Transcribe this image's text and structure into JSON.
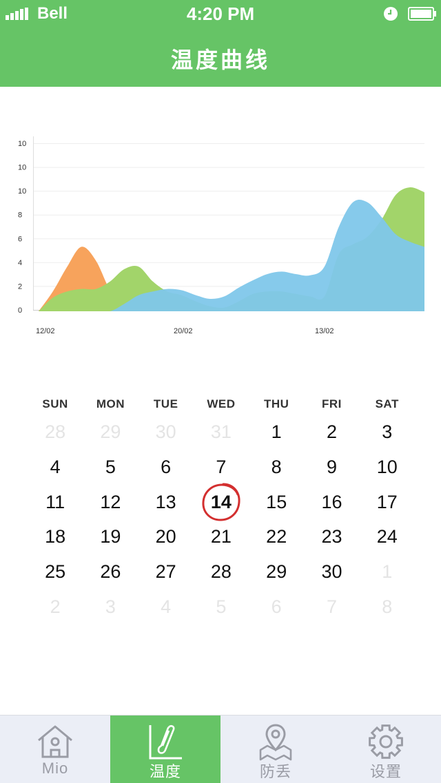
{
  "status_bar": {
    "carrier": "Bell",
    "time": "4:20 PM"
  },
  "header": {
    "title": "温度曲线"
  },
  "chart_data": {
    "type": "area",
    "y_ticks": [
      "0",
      "2",
      "4",
      "6",
      "8",
      "10",
      "10",
      "10"
    ],
    "x_ticks": [
      "12/02",
      "20/02",
      "13/02"
    ],
    "ylim": [
      0,
      14
    ],
    "grid": true,
    "x": [
      0,
      1,
      2,
      3,
      4,
      5,
      6,
      7,
      8,
      9,
      10,
      11,
      12,
      13,
      14,
      15,
      16,
      17,
      18,
      19,
      20,
      21,
      22,
      23,
      24,
      25,
      26,
      27
    ],
    "series": [
      {
        "color": "#f7a35c",
        "values": [
          0,
          1.6,
          3.6,
          5.2,
          4.1,
          1.7,
          0.3,
          0,
          0,
          0,
          0,
          0,
          0,
          0,
          0,
          0,
          0,
          0,
          0,
          0,
          0,
          0,
          0,
          0,
          0,
          0,
          0,
          0
        ]
      },
      {
        "color": "#a2d46a",
        "values": [
          0,
          1.1,
          1.6,
          1.8,
          1.8,
          2.4,
          3.4,
          3.6,
          2.4,
          1.6,
          1.3,
          0.8,
          0.4,
          0.3,
          0.8,
          1.4,
          1.6,
          1.6,
          1.4,
          1.2,
          1.2,
          4.6,
          5.4,
          6.0,
          7.4,
          9.4,
          10.0,
          9.6
        ]
      },
      {
        "color": "#7fc7ea",
        "values": [
          0,
          0,
          0,
          0,
          0,
          0,
          0.6,
          1.3,
          1.6,
          1.8,
          1.7,
          1.3,
          1.0,
          1.2,
          1.9,
          2.5,
          3.0,
          3.2,
          3.0,
          2.9,
          3.6,
          6.8,
          8.8,
          8.8,
          7.6,
          6.2,
          5.6,
          5.2
        ]
      }
    ]
  },
  "calendar": {
    "weekdays": [
      "SUN",
      "MON",
      "TUE",
      "WED",
      "THU",
      "FRI",
      "SAT"
    ],
    "weeks": [
      [
        "28",
        "29",
        "30",
        "31",
        "1",
        "2",
        "3"
      ],
      [
        "4",
        "5",
        "6",
        "7",
        "8",
        "9",
        "10"
      ],
      [
        "11",
        "12",
        "13",
        "14",
        "15",
        "16",
        "17"
      ],
      [
        "18",
        "19",
        "20",
        "21",
        "22",
        "23",
        "24"
      ],
      [
        "25",
        "26",
        "27",
        "28",
        "29",
        "30",
        "1"
      ],
      [
        "2",
        "3",
        "4",
        "5",
        "6",
        "7",
        "8"
      ]
    ],
    "muted": [
      [
        true,
        true,
        true,
        true,
        false,
        false,
        false
      ],
      [
        false,
        false,
        false,
        false,
        false,
        false,
        false
      ],
      [
        false,
        false,
        false,
        false,
        false,
        false,
        false
      ],
      [
        false,
        false,
        false,
        false,
        false,
        false,
        false
      ],
      [
        false,
        false,
        false,
        false,
        false,
        false,
        true
      ],
      [
        true,
        true,
        true,
        true,
        true,
        true,
        true
      ]
    ],
    "today": "14",
    "today_ring_color": "#d32f2f"
  },
  "tab_bar": {
    "active_color": "#66c466",
    "tabs": [
      {
        "label": "Mio",
        "icon": "house-icon",
        "active": false
      },
      {
        "label": "温度",
        "icon": "thermometer-chart-icon",
        "active": true
      },
      {
        "label": "防丢",
        "icon": "map-pin-icon",
        "active": false
      },
      {
        "label": "设置",
        "icon": "gear-icon",
        "active": false
      }
    ]
  }
}
